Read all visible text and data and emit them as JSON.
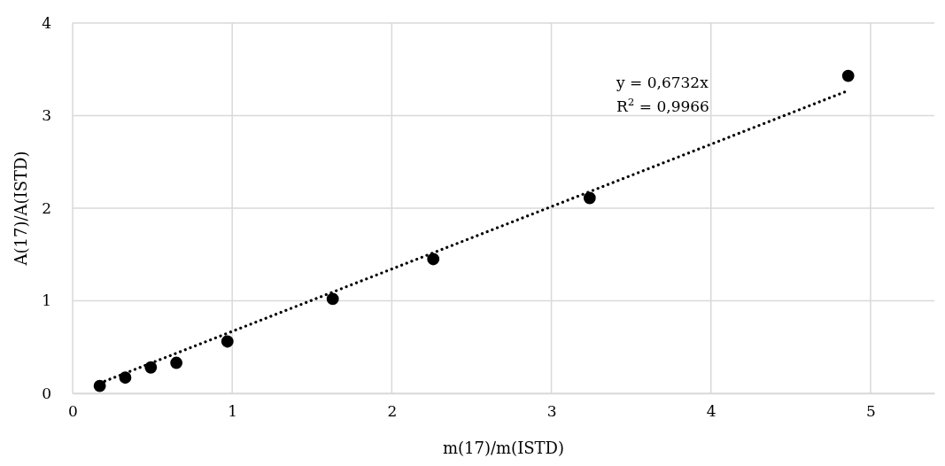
{
  "chart_data": {
    "type": "scatter",
    "xlabel": "m(17)/m(ISTD)",
    "ylabel": "A(17)/A(ISTD)",
    "xlim": [
      0,
      5.4
    ],
    "xticks": [
      0,
      1,
      2,
      3,
      4,
      5
    ],
    "ylim": [
      0,
      4
    ],
    "yticks": [
      0,
      1,
      2,
      3,
      4
    ],
    "grid": true,
    "series": [
      {
        "marker": "circle",
        "color": "#000000",
        "x": [
          0.17,
          0.33,
          0.49,
          0.65,
          0.97,
          1.63,
          2.26,
          3.24,
          4.86
        ],
        "values": [
          0.08,
          0.17,
          0.28,
          0.33,
          0.56,
          1.02,
          1.45,
          2.11,
          3.43
        ]
      },
      {
        "type": "line",
        "marker": "none",
        "color": "#000000",
        "line_style": "dotted",
        "x": [
          0.17,
          4.86
        ],
        "values": [
          0.11,
          3.27
        ]
      }
    ],
    "annotations": [
      "y = 0,6732x",
      "R$^{2}$ = 0,9966"
    ]
  }
}
